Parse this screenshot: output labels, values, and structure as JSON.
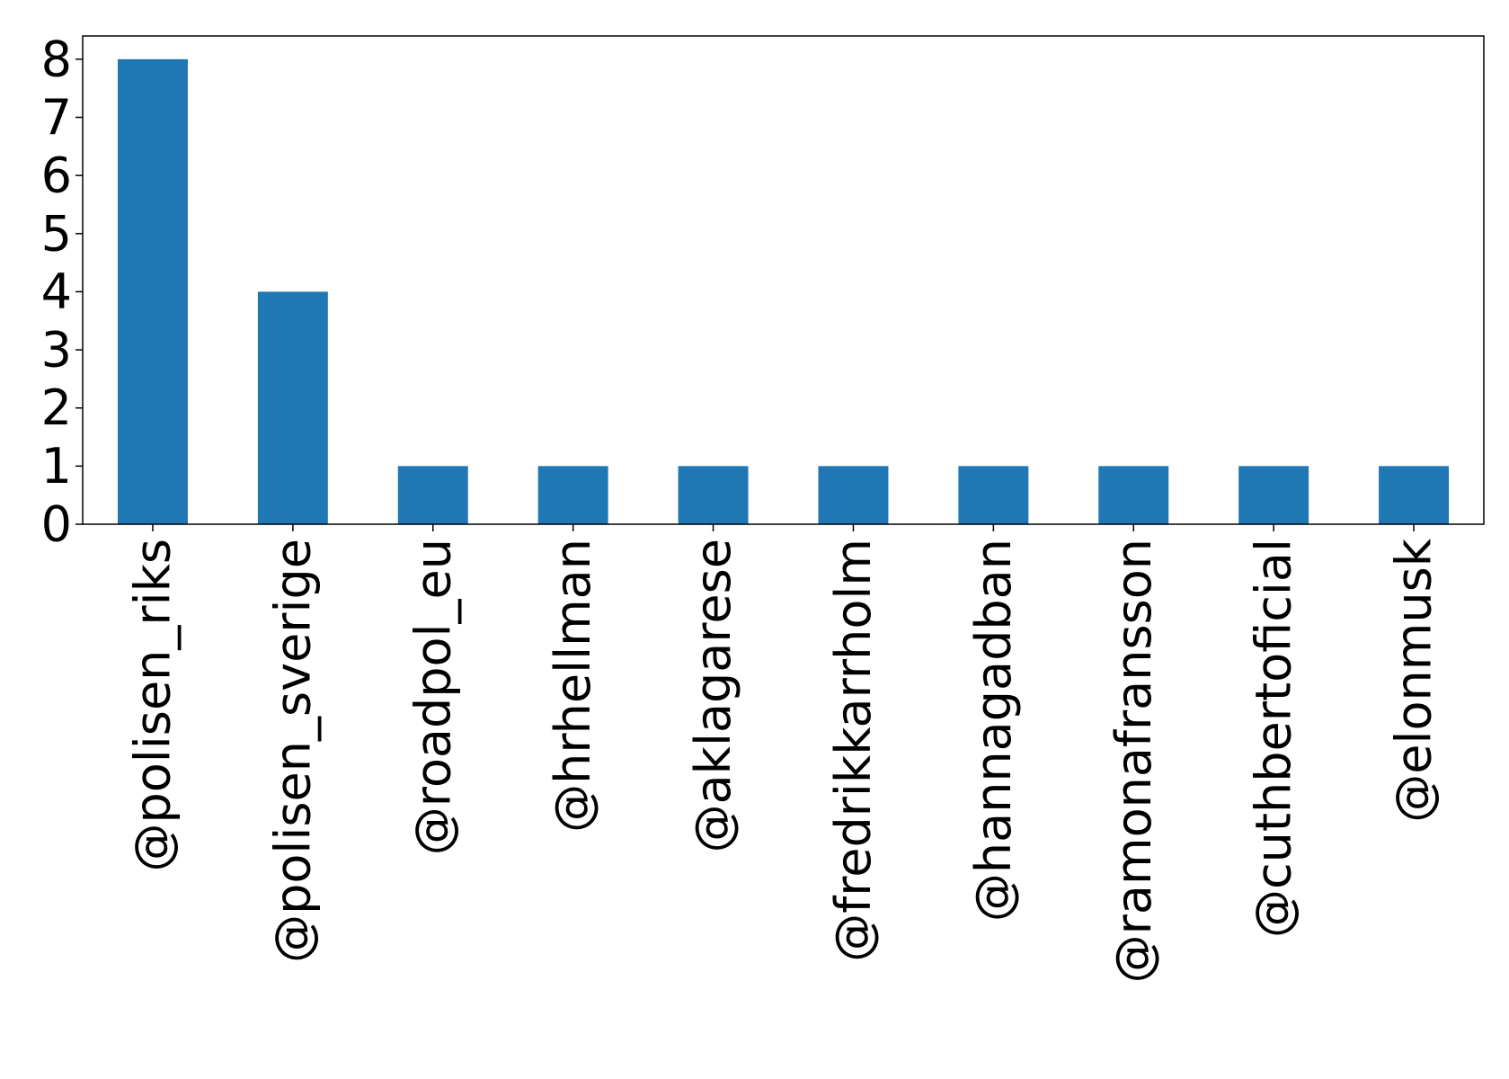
{
  "chart_data": {
    "type": "bar",
    "categories": [
      "@polisen_riks",
      "@polisen_sverige",
      "@roadpol_eu",
      "@hrhellman",
      "@aklagarese",
      "@fredrikkarrholm",
      "@hannagadban",
      "@ramonafransson",
      "@cuthbertoficial",
      "@elonmusk"
    ],
    "values": [
      8,
      4,
      1,
      1,
      1,
      1,
      1,
      1,
      1,
      1
    ],
    "ylim": [
      0,
      8.4
    ],
    "yticks": [
      "0",
      "1",
      "2",
      "3",
      "4",
      "5",
      "6",
      "7",
      "8"
    ],
    "title": "",
    "xlabel": "",
    "ylabel": "",
    "bar_color": "#1f77b4",
    "grid": false,
    "legend": "none"
  }
}
